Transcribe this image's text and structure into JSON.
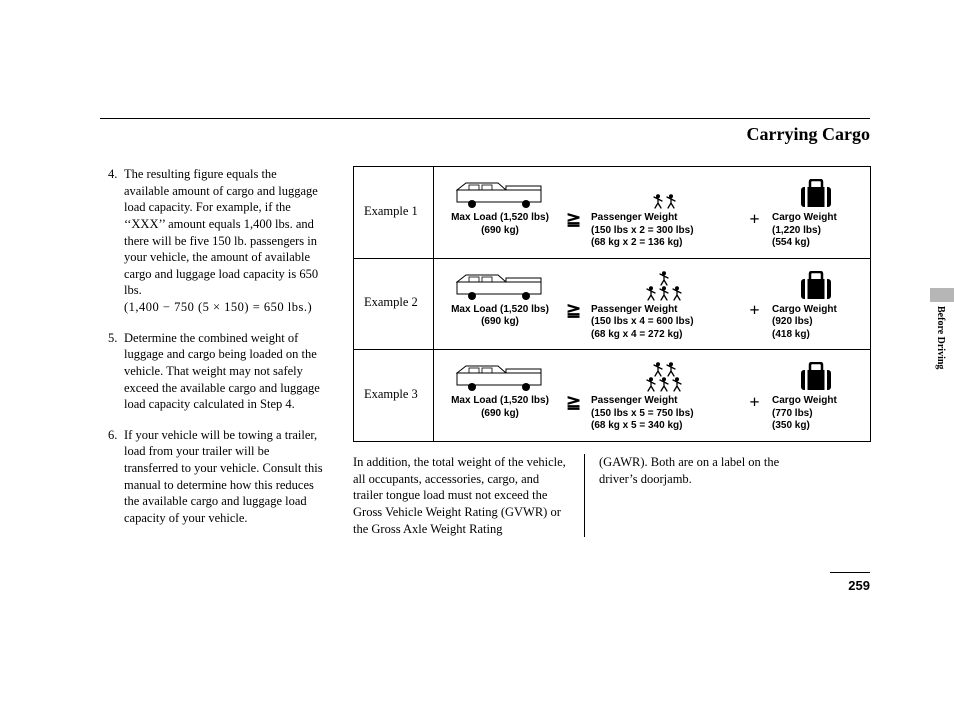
{
  "title": "Carrying Cargo",
  "side_section": "Before Driving",
  "page_number": "259",
  "left_items": [
    {
      "num": "4.",
      "text": "The resulting figure equals the available amount of cargo and luggage load capacity. For example, if the ‘‘XXX’’ amount equals 1,400 lbs. and there will be five 150 lb. passengers in your vehicle, the amount of available cargo and luggage load capacity is 650 lbs.",
      "calc": "(1,400 − 750 (5 × 150) = 650 lbs.)"
    },
    {
      "num": "5.",
      "text": "Determine the combined weight of luggage and cargo being loaded on the vehicle. That weight may not safely exceed the available cargo and luggage load capacity calculated in Step 4."
    },
    {
      "num": "6.",
      "text": "If your vehicle will be towing a trailer, load from your trailer will be transferred to your vehicle. Consult this manual to determine how this reduces the available cargo and luggage load capacity of your vehicle."
    }
  ],
  "examples": [
    {
      "label": "Example 1",
      "max_load": {
        "l1": "Max Load (1,520 lbs)",
        "l2": "(690 kg)"
      },
      "passengers": {
        "count": 2,
        "l1": "Passenger Weight",
        "l2": "(150 lbs x 2 = 300 lbs)",
        "l3": "(68 kg x 2 = 136 kg)"
      },
      "cargo": {
        "l1": "Cargo Weight",
        "l2": "(1,220 lbs)",
        "l3": "(554 kg)"
      }
    },
    {
      "label": "Example 2",
      "max_load": {
        "l1": "Max Load (1,520 lbs)",
        "l2": "(690 kg)"
      },
      "passengers": {
        "count": 4,
        "l1": "Passenger Weight",
        "l2": "(150 lbs x 4 = 600 lbs)",
        "l3": "(68 kg x 4 = 272 kg)"
      },
      "cargo": {
        "l1": "Cargo Weight",
        "l2": "(920 lbs)",
        "l3": "(418 kg)"
      }
    },
    {
      "label": "Example 3",
      "max_load": {
        "l1": "Max Load (1,520 lbs)",
        "l2": "(690 kg)"
      },
      "passengers": {
        "count": 5,
        "l1": "Passenger Weight",
        "l2": "(150 lbs x 5 = 750 lbs)",
        "l3": "(68 kg x 5 = 340 kg)"
      },
      "cargo": {
        "l1": "Cargo Weight",
        "l2": "(770 lbs)",
        "l3": "(350 kg)"
      }
    }
  ],
  "bottom": {
    "col1": "In addition, the total weight of the vehicle, all occupants, accessories, cargo, and trailer tongue load must not exceed the Gross Vehicle Weight Rating (GVWR) or the Gross Axle Weight Rating",
    "col2": "(GAWR). Both are on a label on the driver’s doorjamb."
  },
  "symbols": {
    "ge": "≧",
    "plus": "+"
  }
}
